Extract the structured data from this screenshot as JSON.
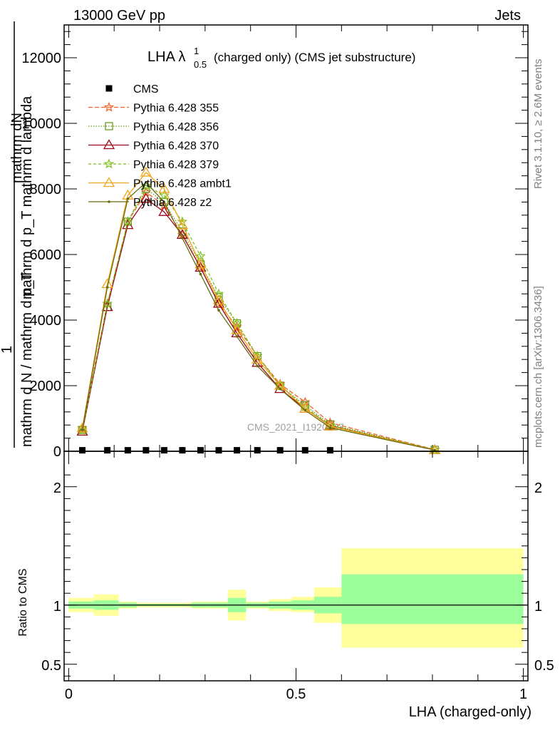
{
  "header": {
    "energy_label": "13000 GeV pp",
    "process_label": "Jets"
  },
  "side_labels": {
    "rivet": "Rivet 3.1.10, ≥ 2.6M events",
    "mcplots": "mcplots.cern.ch [arXiv:1306.3436]"
  },
  "chart_data": [
    {
      "type": "line",
      "title_main": "LHA λ",
      "title_sup": "1",
      "title_sub": "0.5",
      "title_rest": "(charged only) (CMS jet substructure)",
      "ylabel_upper": "mathrm dN",
      "ylabel_upper2": "mathrm d p_T mathrm d lambda",
      "ylabel_one": "1",
      "ylabel_lower": "mathrm d N / mathrm d p_T",
      "ylabel_lower_sub": "T",
      "watermark": "CMS_2021_I1920187",
      "ylim": [
        0,
        13000
      ],
      "xlim": [
        -0.01,
        1.01
      ],
      "yticks": [
        0,
        2000,
        4000,
        6000,
        8000,
        10000,
        12000
      ],
      "ytick_labels": [
        "0",
        "2000",
        "4000",
        "6000",
        "8000",
        "10000",
        "12000"
      ],
      "legend_position": "top-left",
      "cms": {
        "name": "CMS",
        "x": [
          0.03,
          0.085,
          0.13,
          0.17,
          0.21,
          0.25,
          0.29,
          0.33,
          0.37,
          0.415,
          0.465,
          0.52,
          0.575
        ],
        "values": [
          30,
          30,
          30,
          30,
          30,
          30,
          30,
          30,
          30,
          30,
          30,
          30,
          30
        ]
      },
      "x": [
        0.03,
        0.085,
        0.13,
        0.17,
        0.21,
        0.25,
        0.29,
        0.33,
        0.37,
        0.415,
        0.465,
        0.52,
        0.575,
        0.805
      ],
      "series": [
        {
          "name": "Pythia 6.428 355",
          "color": "#f26522",
          "dash": "6,3",
          "marker": "star",
          "values": [
            700,
            4500,
            7000,
            7900,
            7500,
            6600,
            5600,
            4500,
            3800,
            2900,
            2050,
            1500,
            870,
            50
          ]
        },
        {
          "name": "Pythia 6.428 356",
          "color": "#6a9a1f",
          "dash": "1.5,2",
          "marker": "square",
          "values": [
            650,
            4400,
            7000,
            8000,
            7600,
            6700,
            5700,
            4700,
            3900,
            2900,
            2000,
            1400,
            820,
            45
          ]
        },
        {
          "name": "Pythia 6.428 370",
          "color": "#9b0a18",
          "dash": "",
          "marker": "triangle",
          "values": [
            600,
            4400,
            6900,
            7700,
            7300,
            6600,
            5600,
            4500,
            3600,
            2700,
            1900,
            1300,
            780,
            40
          ]
        },
        {
          "name": "Pythia 6.428 379",
          "color": "#7ec11f",
          "dash": "4,3",
          "marker": "star",
          "values": [
            640,
            4500,
            7000,
            8100,
            7800,
            7000,
            5950,
            4800,
            3900,
            2900,
            2000,
            1350,
            790,
            45
          ]
        },
        {
          "name": "Pythia 6.428 ambt1",
          "color": "#f2a51a",
          "dash": "",
          "marker": "triangle",
          "values": [
            700,
            5100,
            7800,
            8500,
            8000,
            6900,
            5700,
            4600,
            3700,
            2800,
            2000,
            1300,
            760,
            40
          ]
        },
        {
          "name": "Pythia 6.428 z2",
          "color": "#6b6b0f",
          "dash": "",
          "marker": "dot",
          "values": [
            650,
            5000,
            7700,
            8200,
            7600,
            6500,
            5400,
            4300,
            3500,
            2600,
            1900,
            1250,
            720,
            35
          ]
        }
      ]
    },
    {
      "type": "area",
      "ylabel": "Ratio to CMS",
      "xlabel": "LHA (charged-only)",
      "ylim": [
        0.36,
        2.3
      ],
      "xlim": [
        -0.01,
        1.01
      ],
      "yticks": [
        0.5,
        1,
        2
      ],
      "ytick_labels": [
        "0.5",
        "1",
        "2"
      ],
      "xticks": [
        0,
        0.5,
        1
      ],
      "xtick_labels": [
        "0",
        "0.5",
        "1"
      ],
      "bin_edges": [
        0.0,
        0.055,
        0.11,
        0.15,
        0.19,
        0.23,
        0.27,
        0.31,
        0.35,
        0.39,
        0.44,
        0.49,
        0.54,
        0.6,
        1.0
      ],
      "inner_band_low": [
        0.97,
        0.96,
        0.98,
        0.99,
        0.99,
        0.99,
        0.98,
        0.98,
        0.94,
        0.98,
        0.97,
        0.96,
        0.93,
        0.84
      ],
      "inner_band_high": [
        1.03,
        1.04,
        1.02,
        1.01,
        1.01,
        1.01,
        1.02,
        1.02,
        1.06,
        1.02,
        1.03,
        1.04,
        1.07,
        1.26
      ],
      "outer_band_low": [
        0.94,
        0.91,
        0.97,
        0.98,
        0.98,
        0.98,
        0.97,
        0.97,
        0.87,
        0.97,
        0.95,
        0.94,
        0.85,
        0.64
      ],
      "outer_band_high": [
        1.06,
        1.09,
        1.03,
        1.02,
        1.02,
        1.02,
        1.03,
        1.03,
        1.13,
        1.03,
        1.05,
        1.07,
        1.15,
        1.48
      ],
      "colors": {
        "inner": "#9cff9c",
        "outer": "#ffff9c",
        "line": "#000000"
      }
    }
  ]
}
